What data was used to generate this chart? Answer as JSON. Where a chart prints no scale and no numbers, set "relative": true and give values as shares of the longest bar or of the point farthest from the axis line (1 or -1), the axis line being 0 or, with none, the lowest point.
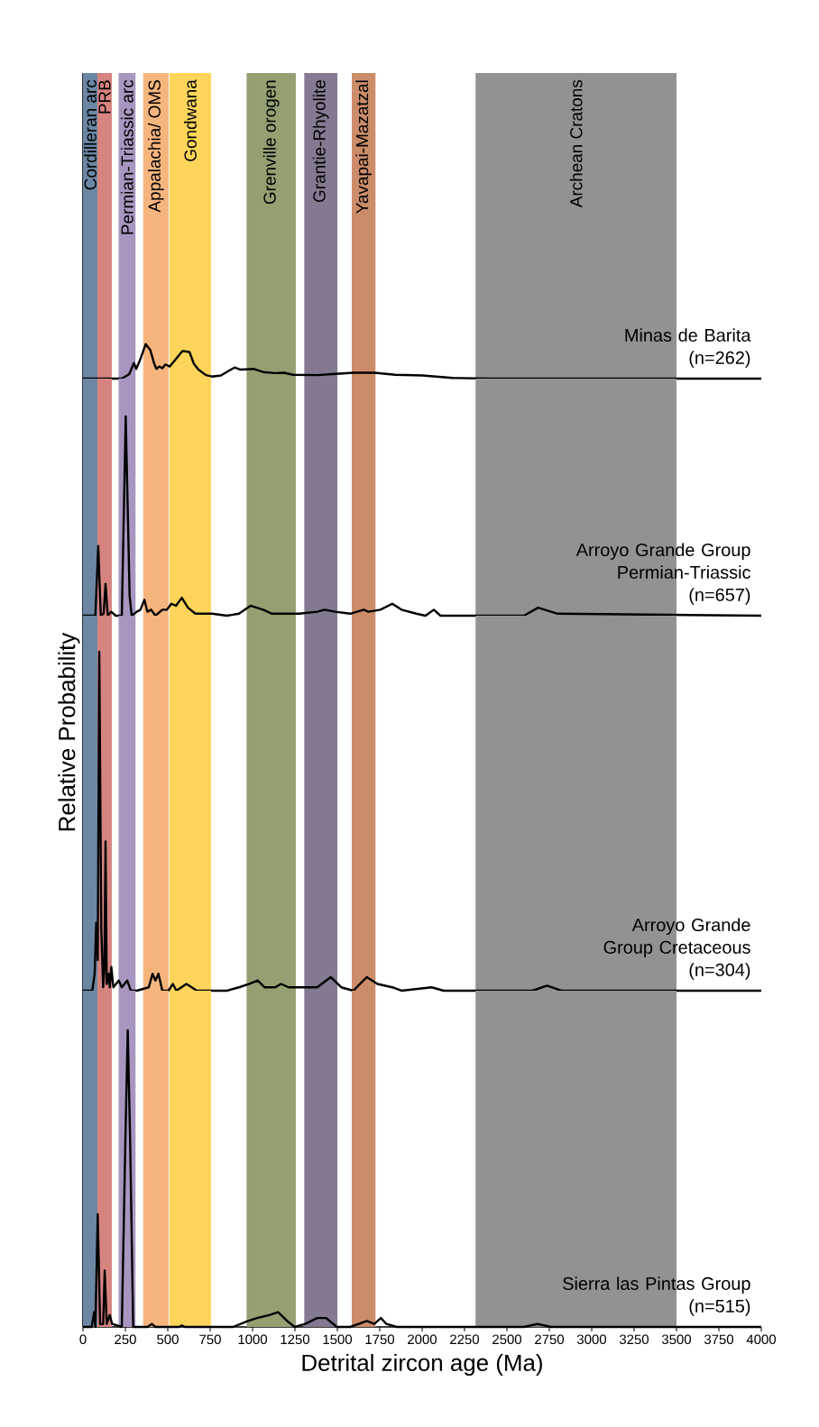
{
  "chart_data": [
    {
      "type": "line",
      "relative": true,
      "xlim": [
        0,
        4000
      ],
      "tick_labels": false,
      "marker": "none",
      "bands": [
        {
          "axis": "x",
          "from": 0,
          "to": 85,
          "label": "Cordilleran arc",
          "color": "#6b87a3"
        },
        {
          "axis": "x",
          "from": 85,
          "to": 170,
          "label": "PRB",
          "color": "#d68480"
        },
        {
          "axis": "x",
          "from": 210,
          "to": 310,
          "label": "Permian-Triassic arc",
          "color": "#a896c0"
        },
        {
          "axis": "x",
          "from": 355,
          "to": 505,
          "label": "Appalachia/ OMS",
          "color": "#f7b57e"
        },
        {
          "axis": "x",
          "from": 510,
          "to": 755,
          "label": "Gondwana",
          "color": "#fed55a"
        },
        {
          "axis": "x",
          "from": 965,
          "to": 1255,
          "label": "Grenville orogen",
          "color": "#93a072"
        },
        {
          "axis": "x",
          "from": 1305,
          "to": 1500,
          "label": "Grantie-Rhyolite",
          "color": "#857891"
        },
        {
          "axis": "x",
          "from": 1585,
          "to": 1725,
          "label": "Yavapai-Mazatzal",
          "color": "#cc8c69"
        },
        {
          "axis": "x",
          "from": 2315,
          "to": 3500,
          "label": "Archean Cratons",
          "color": "#929292"
        }
      ],
      "series": [
        {
          "name": "Minas de Barita",
          "color": "#000000",
          "x": [
            0,
            229,
            273,
            300,
            314,
            335,
            370,
            397,
            420,
            433,
            450,
            468,
            486,
            512,
            548,
            587,
            628,
            654,
            681,
            725,
            761,
            814,
            858,
            894,
            929,
            1009,
            1062,
            1133,
            1186,
            1239,
            1381,
            1470,
            1594,
            1718,
            1842,
            2002,
            2179,
            2410,
            4000
          ],
          "values": [
            0,
            0,
            0.13,
            0.45,
            0.28,
            0.52,
            1.0,
            0.83,
            0.43,
            0.28,
            0.35,
            0.3,
            0.41,
            0.35,
            0.57,
            0.8,
            0.77,
            0.43,
            0.26,
            0.1,
            0.06,
            0.09,
            0.22,
            0.32,
            0.26,
            0.28,
            0.19,
            0.16,
            0.17,
            0.11,
            0.1,
            0.13,
            0.17,
            0.17,
            0.11,
            0.09,
            0.02,
            0,
            0
          ]
        }
      ],
      "annotations": [
        "(n=262)"
      ]
    },
    {
      "type": "line",
      "relative": true,
      "xlim": [
        0,
        4000
      ],
      "tick_labels": false,
      "marker": "none",
      "ylabel": "Relative Probability",
      "bands": [
        {
          "axis": "x",
          "from": 0,
          "to": 85,
          "color": "#6b87a3"
        },
        {
          "axis": "x",
          "from": 85,
          "to": 170,
          "color": "#d68480"
        },
        {
          "axis": "x",
          "from": 210,
          "to": 310,
          "color": "#a896c0"
        },
        {
          "axis": "x",
          "from": 355,
          "to": 505,
          "color": "#f7b57e"
        },
        {
          "axis": "x",
          "from": 510,
          "to": 755,
          "color": "#fed55a"
        },
        {
          "axis": "x",
          "from": 965,
          "to": 1255,
          "color": "#93a072"
        },
        {
          "axis": "x",
          "from": 1305,
          "to": 1500,
          "color": "#857891"
        },
        {
          "axis": "x",
          "from": 1585,
          "to": 1725,
          "color": "#cc8c69"
        },
        {
          "axis": "x",
          "from": 2315,
          "to": 3500,
          "color": "#929292"
        }
      ],
      "series": [
        {
          "name": "Arroyo Grande Group Permian-Triassic",
          "color": "#000000",
          "x": [
            0,
            73,
            90,
            105,
            122,
            133,
            146,
            167,
            193,
            229,
            252,
            275,
            287,
            317,
            339,
            362,
            380,
            402,
            427,
            468,
            495,
            521,
            548,
            583,
            619,
            663,
            761,
            849,
            920,
            988,
            1062,
            1115,
            1275,
            1381,
            1425,
            1488,
            1576,
            1656,
            1683,
            1754,
            1824,
            1878,
            1966,
            2020,
            2069,
            2108,
            2268,
            2600,
            2684,
            2800,
            4000
          ],
          "values": [
            0,
            0,
            0.35,
            0,
            0.01,
            0.16,
            0,
            0.02,
            0,
            0,
            1.0,
            0.1,
            0,
            0.02,
            0.03,
            0.08,
            0.02,
            0.03,
            0,
            0.03,
            0.03,
            0.06,
            0.05,
            0.09,
            0.04,
            0.01,
            0.01,
            0,
            0.01,
            0.05,
            0.03,
            0.01,
            0.01,
            0.02,
            0.03,
            0.02,
            0.01,
            0.03,
            0.02,
            0.03,
            0.06,
            0.03,
            0.01,
            0,
            0.03,
            0,
            0,
            0,
            0.04,
            0.01,
            0
          ]
        }
      ],
      "annotations": [
        "(n=657)"
      ]
    },
    {
      "type": "line",
      "relative": true,
      "xlim": [
        0,
        4000
      ],
      "tick_labels": false,
      "marker": "none",
      "bands": [
        {
          "axis": "x",
          "from": 0,
          "to": 85,
          "color": "#6b87a3"
        },
        {
          "axis": "x",
          "from": 85,
          "to": 170,
          "color": "#d68480"
        },
        {
          "axis": "x",
          "from": 210,
          "to": 310,
          "color": "#a896c0"
        },
        {
          "axis": "x",
          "from": 355,
          "to": 505,
          "color": "#f7b57e"
        },
        {
          "axis": "x",
          "from": 510,
          "to": 755,
          "color": "#fed55a"
        },
        {
          "axis": "x",
          "from": 965,
          "to": 1255,
          "color": "#93a072"
        },
        {
          "axis": "x",
          "from": 1305,
          "to": 1500,
          "color": "#857891"
        },
        {
          "axis": "x",
          "from": 1585,
          "to": 1725,
          "color": "#cc8c69"
        },
        {
          "axis": "x",
          "from": 2315,
          "to": 3500,
          "color": "#929292"
        }
      ],
      "series": [
        {
          "name": "Arroyo Grande Group Cretaceous",
          "color": "#000000",
          "x": [
            0,
            55,
            69,
            78,
            87,
            96,
            108,
            119,
            126,
            133,
            140,
            151,
            158,
            167,
            179,
            211,
            229,
            261,
            282,
            317,
            388,
            410,
            427,
            445,
            468,
            504,
            530,
            551,
            610,
            672,
            849,
            920,
            982,
            1030,
            1071,
            1133,
            1168,
            1213,
            1381,
            1461,
            1523,
            1594,
            1674,
            1736,
            1824,
            1878,
            2056,
            2127,
            2650,
            2737,
            2820,
            4000
          ],
          "values": [
            0,
            0,
            0.05,
            0.2,
            0.09,
            1.0,
            0.18,
            0.01,
            0.06,
            0.44,
            0.02,
            0.05,
            0.01,
            0.07,
            0.01,
            0.03,
            0.01,
            0.03,
            0,
            0,
            0.01,
            0.05,
            0.03,
            0.05,
            0,
            0,
            0.02,
            0,
            0.02,
            0,
            0,
            0.01,
            0.02,
            0.03,
            0.01,
            0.01,
            0.02,
            0.01,
            0.01,
            0.04,
            0.01,
            0,
            0.04,
            0.02,
            0.01,
            0,
            0.01,
            0,
            0,
            0.015,
            0,
            0
          ]
        }
      ],
      "annotations": [
        "(n=304)"
      ]
    },
    {
      "type": "line",
      "relative": true,
      "xlim": [
        0,
        4000
      ],
      "tick_labels": "x",
      "marker": "none",
      "xlabel": "Detrital zircon age (Ma)",
      "xticks": [
        0,
        250,
        500,
        750,
        1000,
        1250,
        1500,
        1750,
        2000,
        2250,
        2500,
        2750,
        3000,
        3250,
        3500,
        3750,
        4000
      ],
      "bands": [
        {
          "axis": "x",
          "from": 0,
          "to": 85,
          "color": "#6b87a3"
        },
        {
          "axis": "x",
          "from": 85,
          "to": 170,
          "color": "#d68480"
        },
        {
          "axis": "x",
          "from": 210,
          "to": 310,
          "color": "#a896c0"
        },
        {
          "axis": "x",
          "from": 355,
          "to": 505,
          "color": "#f7b57e"
        },
        {
          "axis": "x",
          "from": 510,
          "to": 755,
          "color": "#fed55a"
        },
        {
          "axis": "x",
          "from": 965,
          "to": 1255,
          "color": "#93a072"
        },
        {
          "axis": "x",
          "from": 1305,
          "to": 1500,
          "color": "#857891"
        },
        {
          "axis": "x",
          "from": 1585,
          "to": 1725,
          "color": "#cc8c69"
        },
        {
          "axis": "x",
          "from": 2315,
          "to": 3500,
          "color": "#929292"
        }
      ],
      "series": [
        {
          "name": "Sierra las Pintas Group",
          "color": "#000000",
          "x": [
            0,
            51,
            66,
            73,
            87,
            101,
            119,
            128,
            140,
            158,
            172,
            229,
            250,
            264,
            278,
            296,
            380,
            406,
            427,
            566,
            583,
            601,
            885,
            973,
            1027,
            1098,
            1151,
            1204,
            1248,
            1310,
            1381,
            1434,
            1497,
            1576,
            1674,
            1718,
            1757,
            1789,
            1851,
            2600,
            2680,
            2760,
            4000
          ],
          "values": [
            0,
            0,
            0.05,
            0,
            0.38,
            0.01,
            0.01,
            0.19,
            0.01,
            0.04,
            0.01,
            0,
            0.63,
            1.0,
            0.63,
            0,
            0,
            0.01,
            0,
            0,
            0.005,
            0,
            0,
            0.02,
            0.03,
            0.04,
            0.05,
            0.02,
            0,
            0.01,
            0.03,
            0.03,
            0,
            0,
            0.02,
            0.01,
            0.03,
            0.01,
            0,
            0,
            0.01,
            0,
            0
          ]
        }
      ],
      "annotations": [
        "(n=515)"
      ]
    }
  ]
}
